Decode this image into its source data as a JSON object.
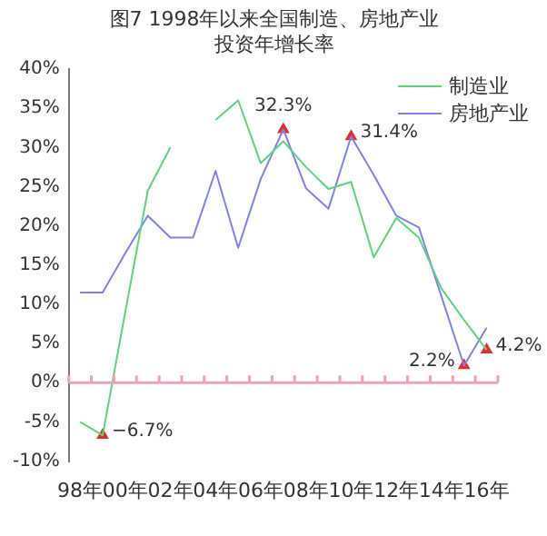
{
  "chart_data": {
    "type": "line",
    "title": "图7 1998年以来全国制造、房地产业投资年增长率",
    "categories": [
      "98年",
      null,
      "00年",
      null,
      "02年",
      null,
      "04年",
      null,
      "06年",
      null,
      "08年",
      null,
      "10年",
      null,
      "12年",
      null,
      "14年",
      null,
      "16年"
    ],
    "series": [
      {
        "name": "制造业",
        "color": "#5cd67a",
        "values": [
          -5,
          -6.7,
          9,
          24.5,
          30,
          null,
          33.5,
          36,
          28,
          30.8,
          27.5,
          24.7,
          25.6,
          16,
          21,
          18.5,
          12,
          8,
          4.2
        ]
      },
      {
        "name": "房地产业",
        "color": "#8080f0",
        "values": [
          11.5,
          11.5,
          16.5,
          21.3,
          18.5,
          18.5,
          27,
          17.2,
          26,
          32.3,
          24.8,
          22.2,
          31.4,
          26.5,
          21.3,
          19.8,
          11,
          2.2,
          7
        ]
      },
      {
        "type": "scatter",
        "marker": "triangle",
        "color": "#e03030",
        "values": [
          null,
          -6.7,
          null,
          null,
          null,
          null,
          null,
          null,
          null,
          32.3,
          null,
          null,
          31.4,
          null,
          null,
          null,
          null,
          2.2,
          4.2
        ],
        "value_labels": [
          null,
          "−6.7%",
          null,
          null,
          null,
          null,
          null,
          null,
          null,
          "32.3%",
          null,
          null,
          "31.4%",
          null,
          null,
          null,
          null,
          "2.2%",
          "4.2%"
        ]
      }
    ],
    "ylim": [
      -10,
      40
    ],
    "yticks": [
      {
        "value": -10,
        "label": "-10%"
      },
      {
        "value": -5,
        "label": "-5%"
      },
      {
        "value": 0,
        "label": "0%"
      },
      {
        "value": 5,
        "label": "5%"
      },
      {
        "value": 10,
        "label": "10%"
      },
      {
        "value": 15,
        "label": "15%"
      },
      {
        "value": 20,
        "label": "20%"
      },
      {
        "value": 25,
        "label": "25%"
      },
      {
        "value": 30,
        "label": "30%"
      },
      {
        "value": 35,
        "label": "35%"
      },
      {
        "value": 40,
        "label": "40%"
      }
    ],
    "ref_lines": [
      {
        "axis": "y",
        "value": 0,
        "color": "#f4a0b4"
      }
    ],
    "grid": false,
    "legend": "top right",
    "marker": "none",
    "line_style": "solid"
  }
}
